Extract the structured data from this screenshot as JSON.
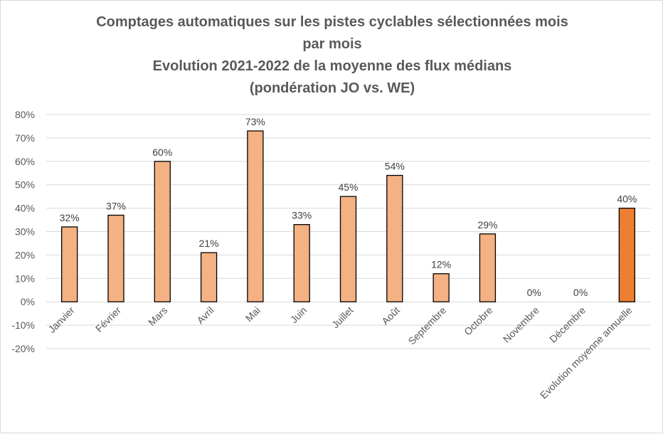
{
  "chart_data": {
    "type": "bar",
    "title": [
      "Comptages automatiques sur les pistes cyclables sélectionnées mois",
      "par mois",
      "Evolution 2021-2022 de la moyenne des flux médians",
      "(pondération JO vs. WE)"
    ],
    "xlabel": "",
    "ylabel": "",
    "categories": [
      "Janvier",
      "Février",
      "Mars",
      "Avril",
      "Mai",
      "Juin",
      "Juillet",
      "Août",
      "Septembre",
      "Octobre",
      "Novembre",
      "Décembre",
      "Evolution moyenne annuelle"
    ],
    "values": [
      32,
      37,
      60,
      21,
      73,
      33,
      45,
      54,
      12,
      29,
      0,
      0,
      40
    ],
    "data_labels": [
      "32%",
      "37%",
      "60%",
      "21%",
      "73%",
      "33%",
      "45%",
      "54%",
      "12%",
      "29%",
      "0%",
      "0%",
      "40%"
    ],
    "ylim": [
      -20,
      80
    ],
    "yticks": [
      "-20%",
      "-10%",
      "0%",
      "10%",
      "20%",
      "30%",
      "40%",
      "50%",
      "60%",
      "70%",
      "80%"
    ],
    "grid": true,
    "legend": "none",
    "colors": {
      "monthly": "#f4b183",
      "annual": "#ed7d31",
      "outline": "#000000",
      "grid": "#d9d9d9"
    }
  }
}
